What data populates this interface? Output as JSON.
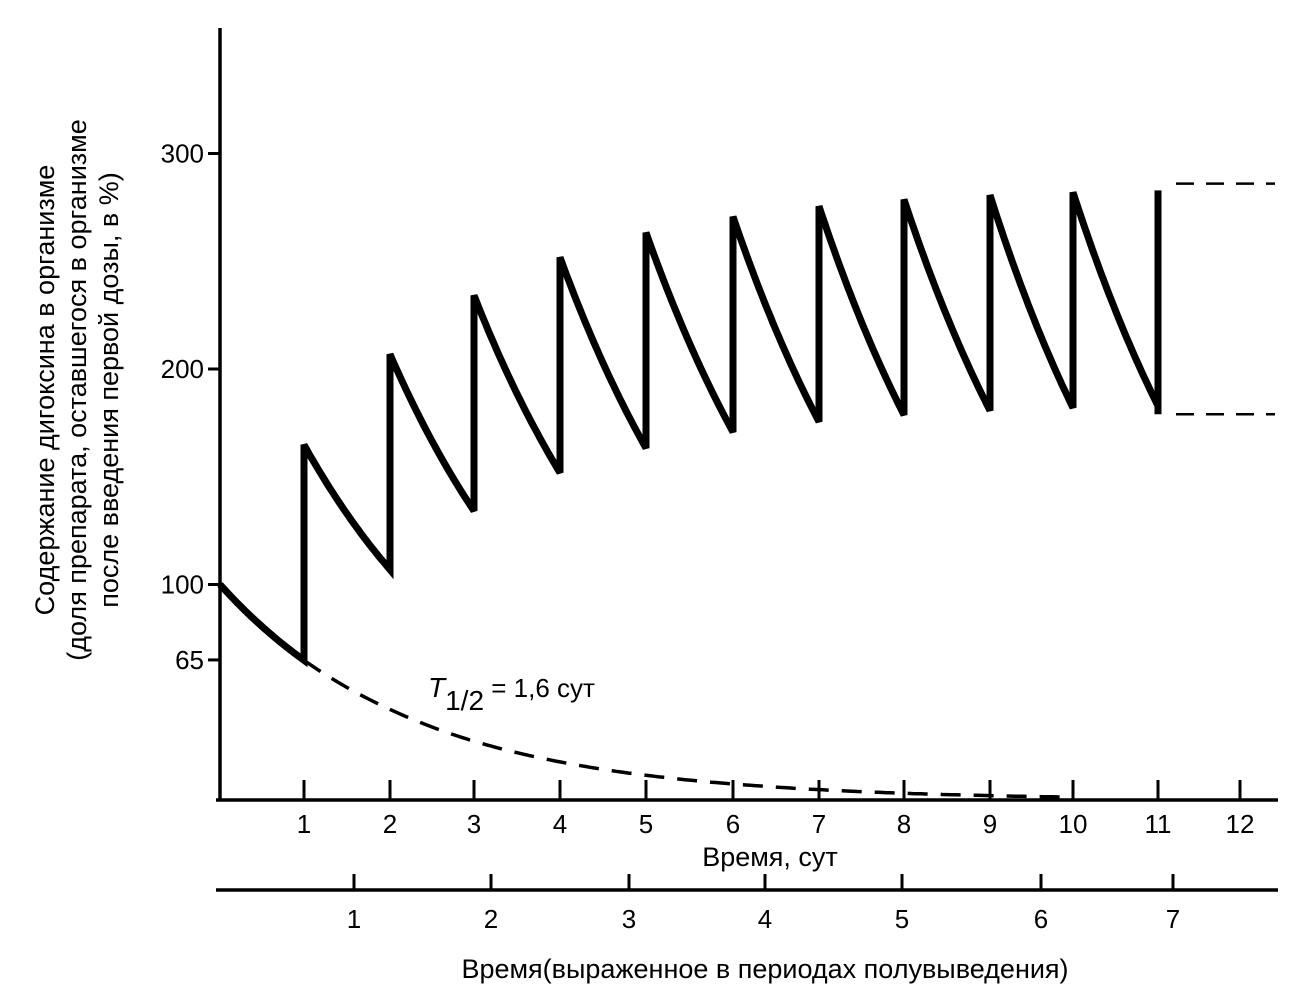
{
  "chart_data": {
    "type": "line",
    "ylabel_lines": [
      "Содержание дигоксина в организме",
      "(доля препарата, оставшегося в организме",
      "после введения первой дозы, в %)"
    ],
    "xlabel": "Время, сут",
    "x2label": "Время(выраженное в периодах полувыведения)",
    "annotation": {
      "prefix": "T",
      "subscript": "1/2",
      "suffix": " = 1,6 сут"
    },
    "y_ticks": [
      "65",
      "100",
      "200",
      "300"
    ],
    "x_ticks": [
      "1",
      "2",
      "3",
      "4",
      "5",
      "6",
      "7",
      "8",
      "9",
      "10",
      "11",
      "12"
    ],
    "x2_ticks": [
      "1",
      "2",
      "3",
      "4",
      "5",
      "6",
      "7"
    ],
    "half_life_days": 1.6,
    "dose_interval_days": 1,
    "series": [
      {
        "style": "solid-thick",
        "description_points": [
          [
            0,
            100
          ],
          [
            1,
            65
          ],
          [
            1,
            165
          ],
          [
            2,
            107
          ],
          [
            2,
            207
          ],
          [
            3,
            135
          ],
          [
            3,
            235
          ],
          [
            4,
            152
          ],
          [
            4,
            252
          ],
          [
            5,
            164
          ],
          [
            5,
            264
          ],
          [
            6,
            171
          ],
          [
            6,
            271
          ],
          [
            7,
            176
          ],
          [
            7,
            276
          ],
          [
            8,
            179
          ],
          [
            8,
            279
          ],
          [
            9,
            181
          ],
          [
            9,
            281
          ],
          [
            10,
            183
          ],
          [
            10,
            283
          ],
          [
            11,
            184
          ],
          [
            11,
            284
          ]
        ]
      },
      {
        "style": "dashed",
        "description_points": [
          [
            1,
            65
          ],
          [
            2,
            42
          ],
          [
            3,
            27
          ],
          [
            4,
            18
          ],
          [
            5,
            11
          ],
          [
            6,
            7
          ],
          [
            7,
            5
          ],
          [
            8,
            3
          ],
          [
            9,
            2
          ],
          [
            10,
            1
          ]
        ]
      }
    ],
    "steady_state_dashes": {
      "peak": 286,
      "trough": 179
    },
    "ylim": [
      0,
      350
    ],
    "xlim": [
      0,
      12.4
    ]
  }
}
